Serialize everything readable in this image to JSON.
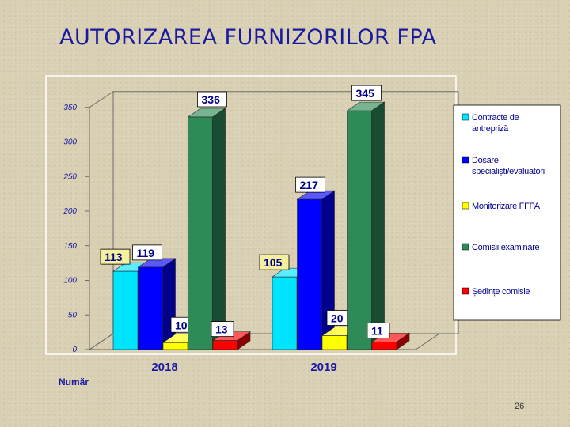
{
  "slide": {
    "title": "AUTORIZAREA FURNIZORILOR FPA",
    "page_number": "26"
  },
  "chart_data": {
    "type": "bar",
    "title": "",
    "xlabel": "",
    "ylabel": "Număr",
    "ylim": [
      0,
      350
    ],
    "yticks": [
      "0",
      "50",
      "100",
      "150",
      "200",
      "250",
      "300",
      "350"
    ],
    "categories": [
      "2018",
      "2019"
    ],
    "legend_position": "right",
    "series": [
      {
        "name": "Contracte de antrepriză",
        "values": [
          113,
          105
        ],
        "color": "#00e5ff"
      },
      {
        "name": "Dosare specialiști/evaluatori",
        "values": [
          119,
          217
        ],
        "color": "#0000ff"
      },
      {
        "name": "Monitorizare FFPA",
        "values": [
          10,
          20
        ],
        "color": "#ffff00"
      },
      {
        "name": "Comisii examinare",
        "values": [
          336,
          345
        ],
        "color": "#2e8b57"
      },
      {
        "name": "Ședințe comisie",
        "values": [
          13,
          11
        ],
        "color": "#ff0000"
      }
    ]
  }
}
